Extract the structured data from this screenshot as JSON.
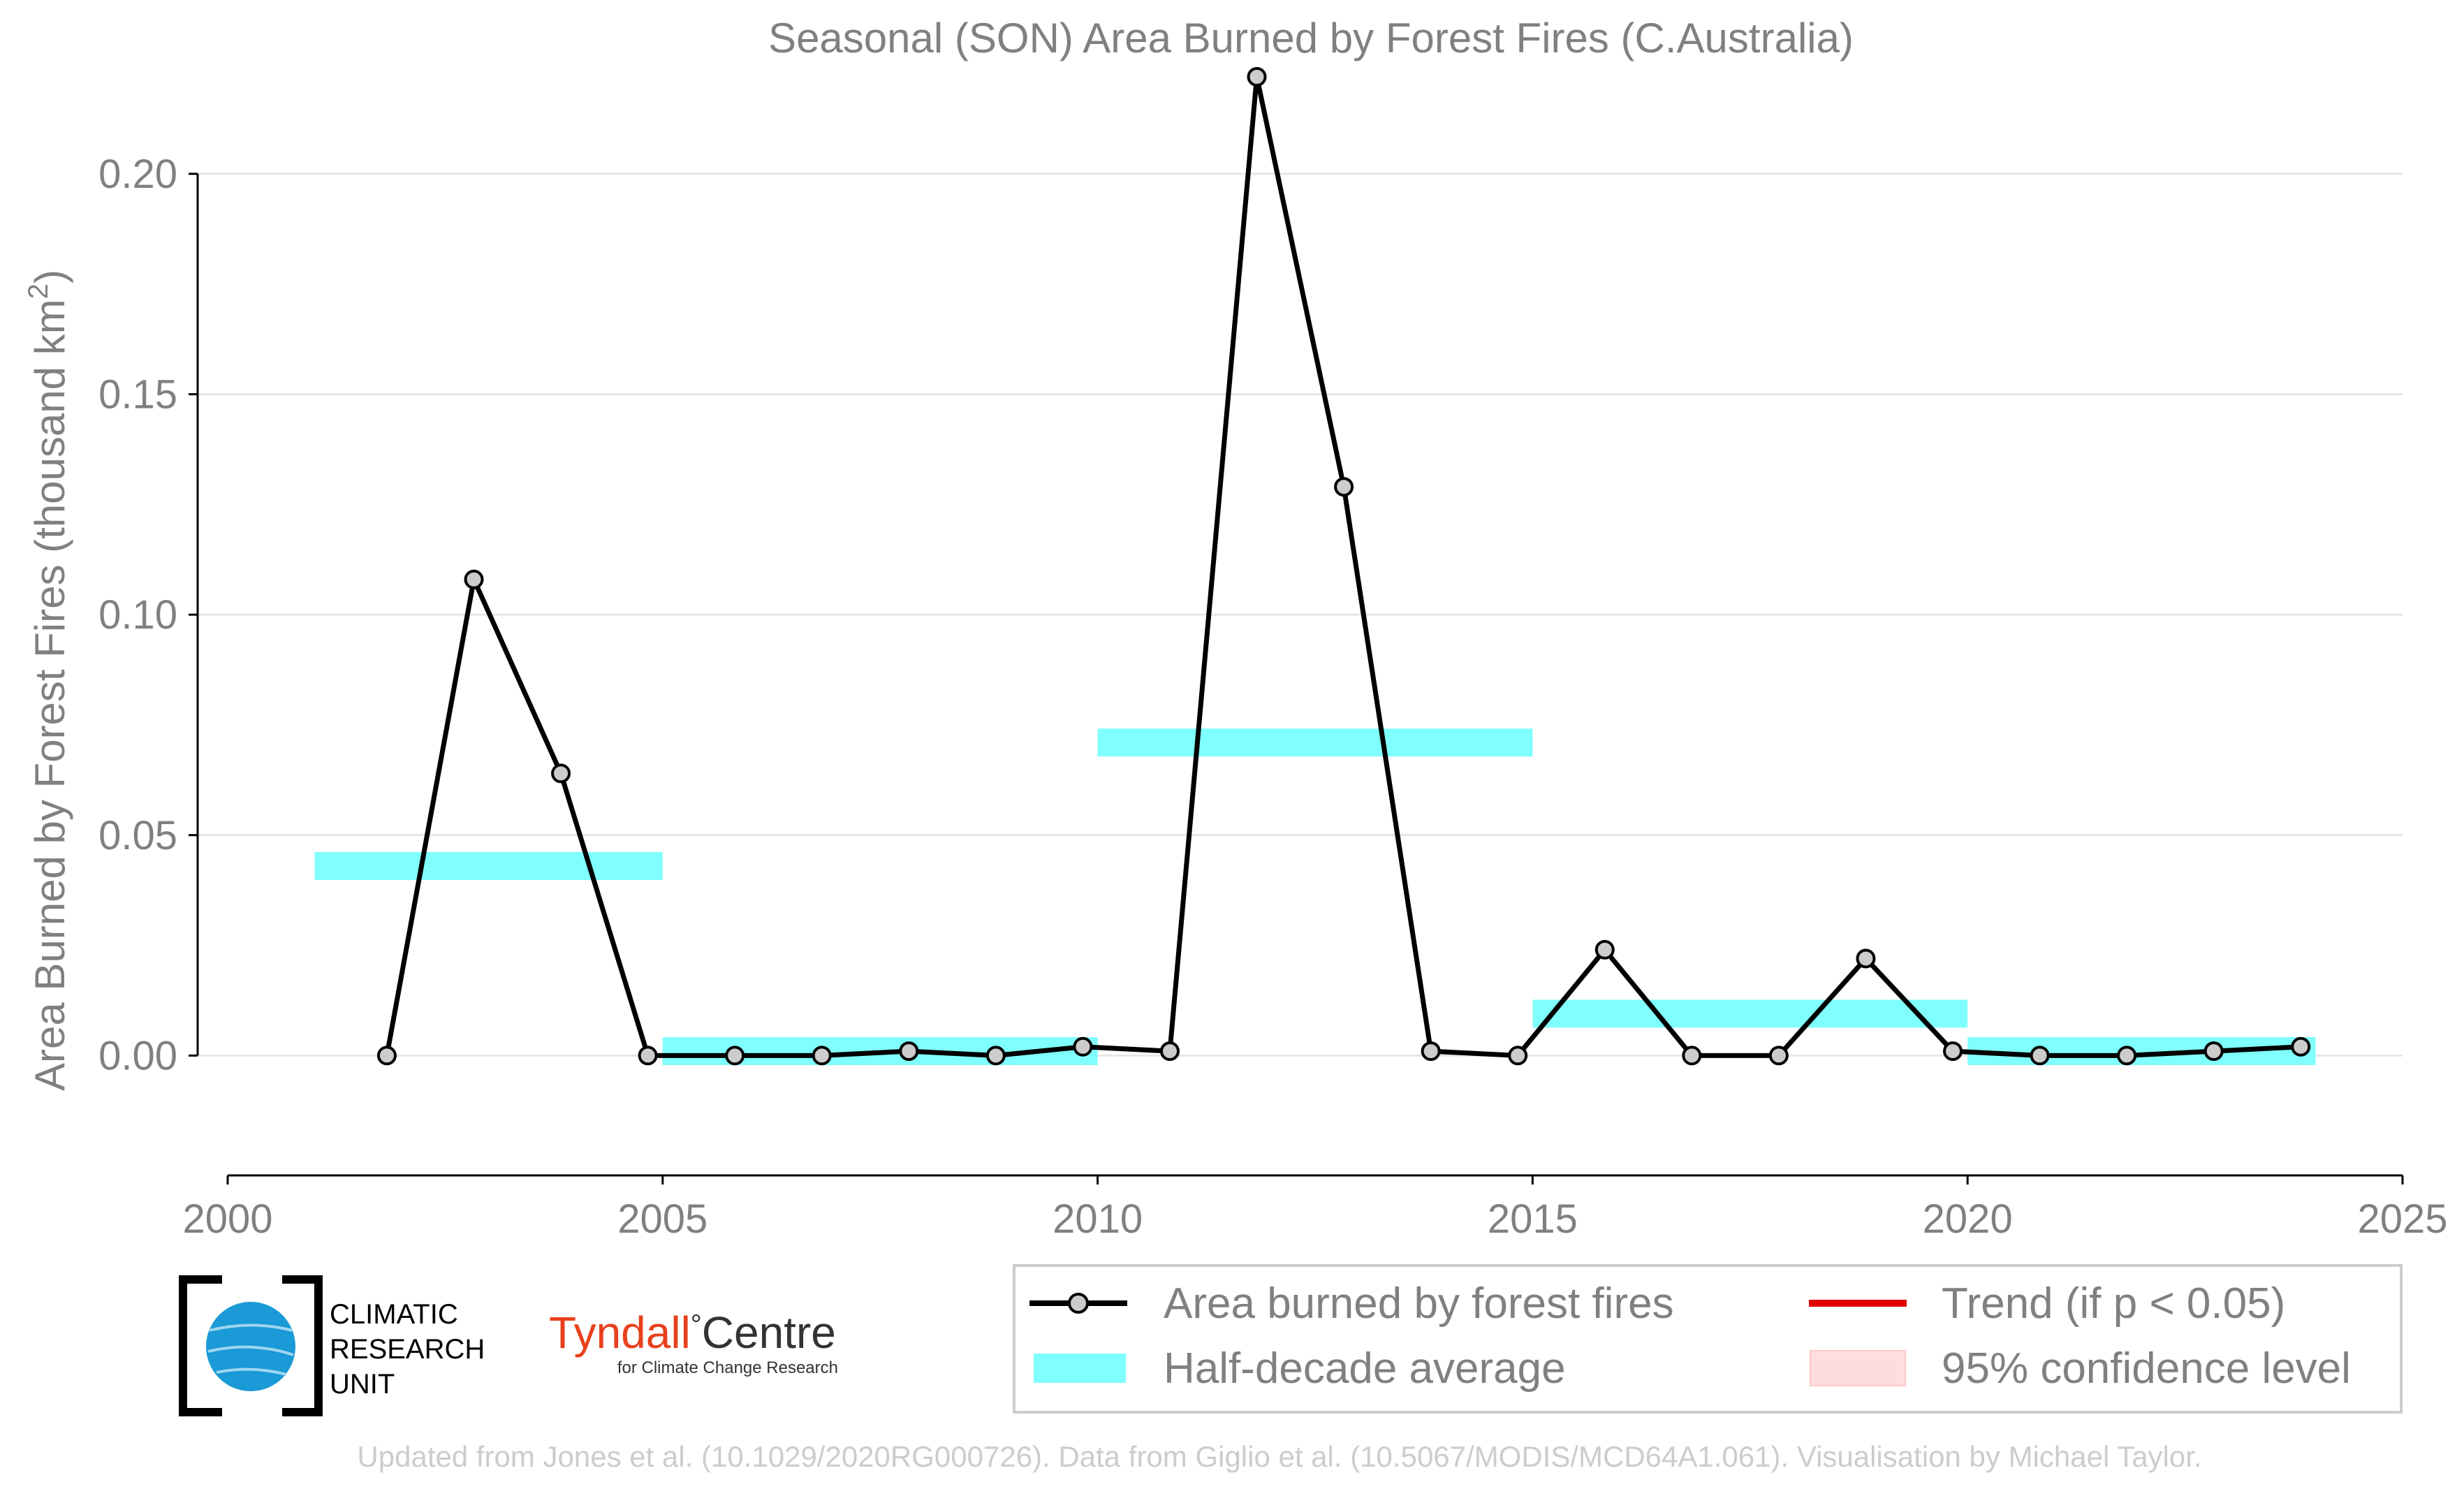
{
  "chart_data": {
    "type": "line",
    "title": "Seasonal (SON) Area Burned by Forest Fires (C.Australia)",
    "ylabel": "Area Burned by Forest Fires (thousand km",
    "ylabel_sup": "2",
    "ylabel_close": ")",
    "xlim": [
      2000,
      2025
    ],
    "ylim": [
      -0.018,
      0.222
    ],
    "xticks": [
      2000,
      2005,
      2010,
      2015,
      2020,
      2025
    ],
    "yticks": [
      0.0,
      0.05,
      0.1,
      0.15,
      0.2
    ],
    "ytick_labels": [
      "0.00",
      "0.05",
      "0.10",
      "0.15",
      "0.20"
    ],
    "grid": "horizontal",
    "series": [
      {
        "name": "Area burned by forest fires",
        "color": "#000000",
        "marker_fill": "#cccccc",
        "x": [
          2001.83,
          2002.83,
          2003.83,
          2004.83,
          2005.83,
          2006.83,
          2007.83,
          2008.83,
          2009.83,
          2010.83,
          2011.83,
          2012.83,
          2013.83,
          2014.83,
          2015.83,
          2016.83,
          2017.83,
          2018.83,
          2019.83,
          2020.83,
          2021.83,
          2022.83,
          2023.83
        ],
        "values": [
          0.0,
          0.108,
          0.064,
          0.0,
          0.0,
          0.0,
          0.001,
          0.0,
          0.002,
          0.001,
          0.222,
          0.129,
          0.001,
          0.0,
          0.024,
          0.0,
          0.0,
          0.022,
          0.001,
          0.0,
          0.0,
          0.001,
          0.002
        ]
      },
      {
        "name": "Half-decade average",
        "color": "#80ffff",
        "segments": [
          {
            "x0": 2001.0,
            "x1": 2005.0,
            "value": 0.043
          },
          {
            "x0": 2005.0,
            "x1": 2010.0,
            "value": 0.001
          },
          {
            "x0": 2010.0,
            "x1": 2015.0,
            "value": 0.071
          },
          {
            "x0": 2015.0,
            "x1": 2020.0,
            "value": 0.0095
          },
          {
            "x0": 2020.0,
            "x1": 2024.0,
            "value": 0.001
          }
        ]
      }
    ],
    "legend": {
      "placement": "bottom-right",
      "items": [
        {
          "label": "Area burned by forest fires",
          "kind": "line-marker",
          "color": "#000000"
        },
        {
          "label": "Trend (if p < 0.05)",
          "kind": "line",
          "color": "#e00000"
        },
        {
          "label": "Half-decade average",
          "kind": "band",
          "color": "#80ffff"
        },
        {
          "label": "95% confidence level",
          "kind": "fill",
          "color": "#ffdddd"
        }
      ]
    }
  },
  "logos": {
    "cru": [
      "CLIMATIC",
      "RESEARCH",
      "UNIT"
    ],
    "tyndall_main": "Tyndall",
    "tyndall_degree": "°",
    "tyndall_centre": "Centre",
    "tyndall_sub": "for Climate Change Research"
  },
  "footer": "Updated from Jones et al. (10.1029/2020RG000726). Data from Giglio et al. (10.5067/MODIS/MCD64A1.061). Visualisation by Michael Taylor."
}
